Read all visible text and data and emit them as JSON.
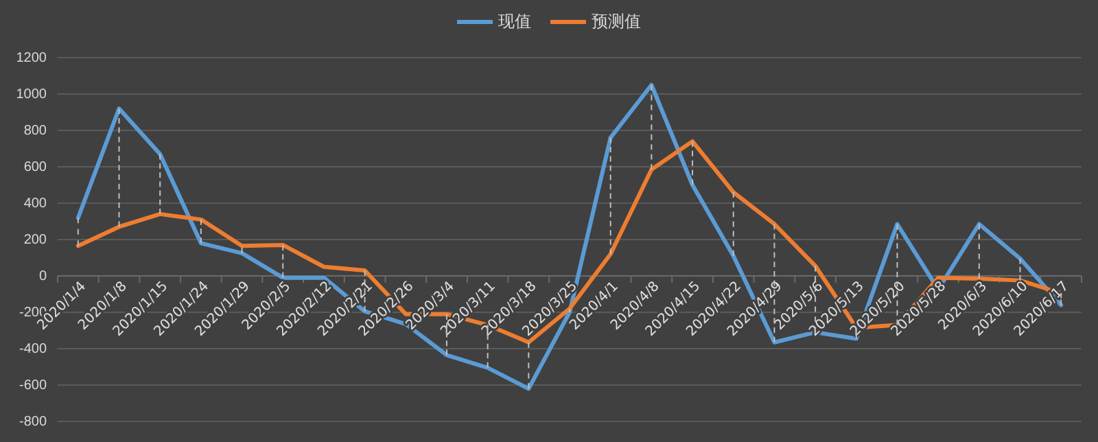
{
  "chart_data": {
    "type": "line",
    "categories": [
      "2020/1/4",
      "2020/1/8",
      "2020/1/15",
      "2020/1/24",
      "2020/1/29",
      "2020/2/5",
      "2020/2/12",
      "2020/2/21",
      "2020/2/26",
      "2020/3/4",
      "2020/3/11",
      "2020/3/18",
      "2020/3/25",
      "2020/4/1",
      "2020/4/8",
      "2020/4/15",
      "2020/4/22",
      "2020/4/29",
      "2020/5/6",
      "2020/5/13",
      "2020/5/20",
      "2020/5/28",
      "2020/6/3",
      "2020/6/10",
      "2020/6/17"
    ],
    "series": [
      {
        "name": "现值",
        "color": "#5b9bd5",
        "values": [
          320,
          920,
          670,
          180,
          125,
          -10,
          -10,
          -195,
          -265,
          -435,
          -505,
          -620,
          -200,
          760,
          1050,
          500,
          110,
          -365,
          -310,
          -345,
          285,
          -75,
          285,
          95,
          -160
        ],
        "errors": [
          [
            165,
            320
          ],
          [
            270,
            920
          ],
          [
            340,
            670
          ],
          [
            180,
            310
          ],
          [
            125,
            165
          ],
          [
            -10,
            170
          ],
          null,
          [
            -195,
            30
          ],
          null,
          [
            -435,
            -210
          ],
          [
            -505,
            -270
          ],
          [
            -620,
            -365
          ],
          [
            -200,
            -180
          ],
          [
            120,
            760
          ],
          [
            585,
            1050
          ],
          [
            500,
            740
          ],
          [
            110,
            460
          ],
          [
            -365,
            285
          ],
          [
            -310,
            55
          ],
          [
            -345,
            -285
          ],
          [
            -270,
            285
          ],
          null,
          [
            -15,
            285
          ],
          [
            -25,
            95
          ],
          [
            -160,
            -95
          ]
        ]
      },
      {
        "name": "预测值",
        "color": "#ed7d31",
        "values": [
          165,
          270,
          340,
          310,
          165,
          170,
          50,
          30,
          -210,
          -210,
          -270,
          -365,
          -180,
          120,
          585,
          740,
          460,
          285,
          55,
          -285,
          -270,
          -10,
          -15,
          -25,
          -95
        ]
      }
    ],
    "ylim": [
      -800,
      1200
    ],
    "yticks": [
      -800,
      -600,
      -400,
      -200,
      0,
      200,
      400,
      600,
      800,
      1000,
      1200
    ],
    "grid": "y",
    "legend": "top",
    "marker": "none",
    "line_style": "solid"
  }
}
